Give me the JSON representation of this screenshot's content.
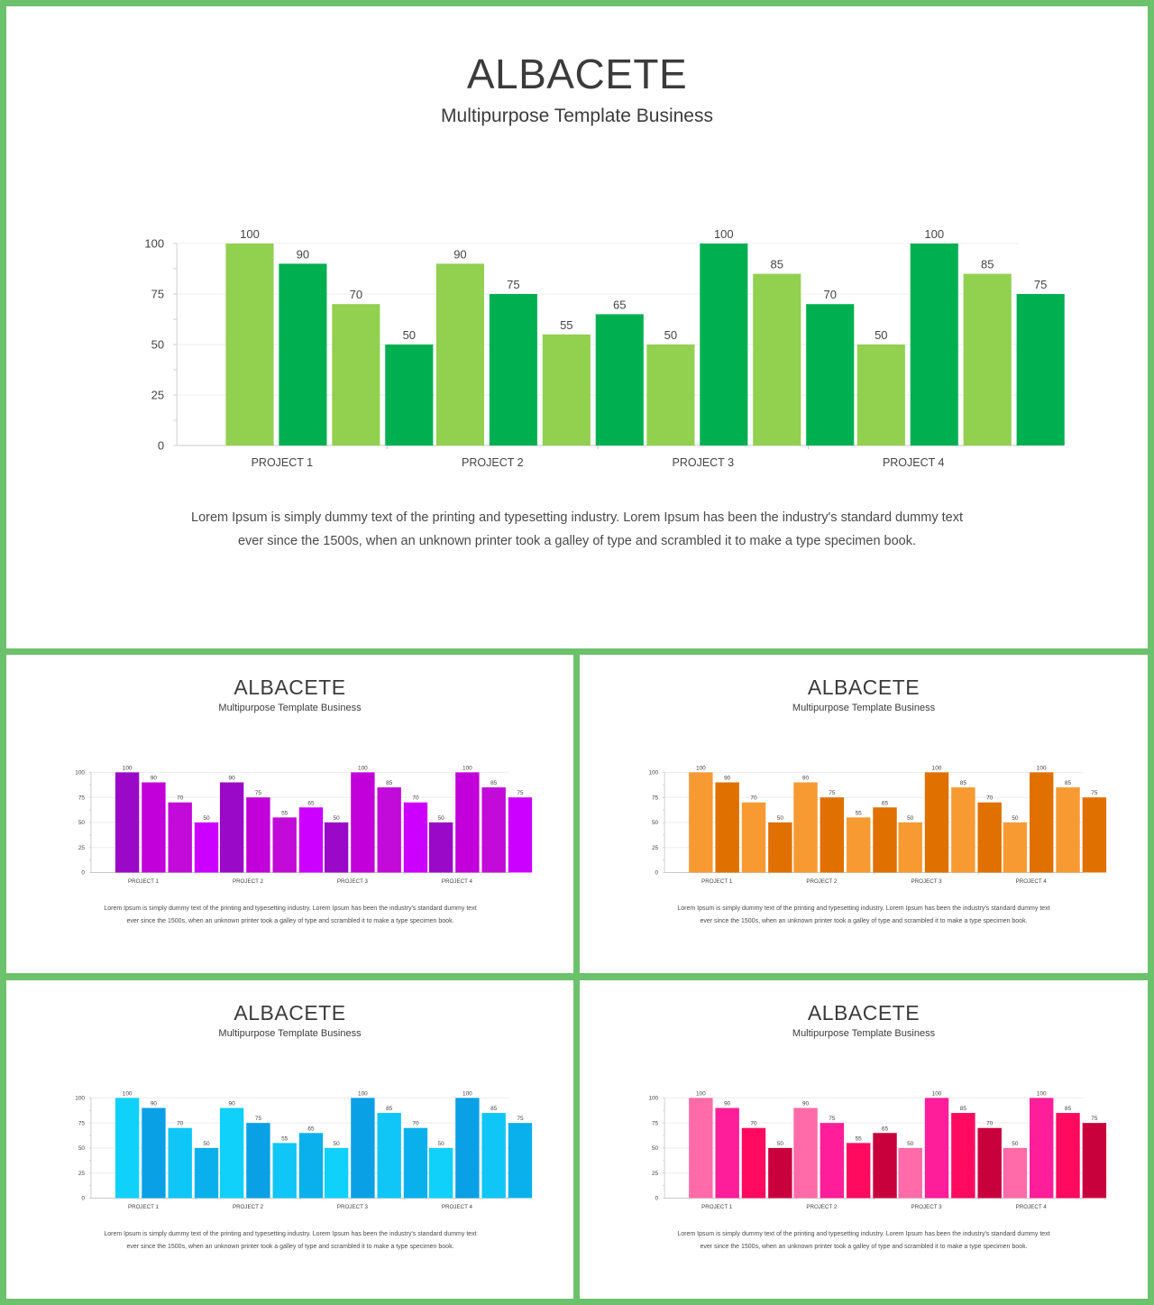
{
  "slides": [
    {
      "title": "ALBACETE",
      "subtitle": "Multipurpose Template Business",
      "body_line1": "Lorem Ipsum is simply dummy text of the printing and typesetting industry. Lorem Ipsum has been the industry's standard dummy text",
      "body_line2": "ever since the 1500s,  when an unknown printer took a galley of type and scrambled it to make a type specimen book.",
      "colors": [
        "#92d050",
        "#00b050",
        "#92d050",
        "#00b050"
      ]
    },
    {
      "title": "ALBACETE",
      "subtitle": "Multipurpose Template Business",
      "body_line1": "Lorem Ipsum is simply dummy text of the printing and typesetting industry. Lorem Ipsum has been the industry's standard dummy text",
      "body_line2": "ever since the 1500s,  when an unknown printer took a galley of type and scrambled it to make a type specimen book.",
      "colors": [
        "#9a09c7",
        "#c200d9",
        "#c20ad9",
        "#cc00ff"
      ]
    },
    {
      "title": "ALBACETE",
      "subtitle": "Multipurpose Template Business",
      "body_line1": "Lorem Ipsum is simply dummy text of the printing and typesetting industry. Lorem Ipsum has been the industry's standard dummy text",
      "body_line2": "ever since the 1500s,  when an unknown printer took a galley of type and scrambled it to make a type specimen book.",
      "colors": [
        "#f79a32",
        "#e07000",
        "#f79a32",
        "#e07000"
      ]
    },
    {
      "title": "ALBACETE",
      "subtitle": "Multipurpose Template Business",
      "body_line1": "Lorem Ipsum is simply dummy text of the printing and typesetting industry. Lorem Ipsum has been the industry's standard dummy text",
      "body_line2": "ever since the 1500s,  when an unknown printer took a galley of type and scrambled it to make a type specimen book.",
      "colors": [
        "#0fd1fa",
        "#0aa0e6",
        "#0fc6f7",
        "#0ab0eb"
      ]
    },
    {
      "title": "ALBACETE",
      "subtitle": "Multipurpose Template Business",
      "body_line1": "Lorem Ipsum is simply dummy text of the printing and typesetting industry. Lorem Ipsum has been the industry's standard dummy text",
      "body_line2": "ever since the 1500s,  when an unknown printer took a galley of type and scrambled it to make a type specimen book.",
      "colors": [
        "#ff6aa8",
        "#ff1e9a",
        "#ff0a5e",
        "#c8003c"
      ]
    }
  ],
  "chart_data": [
    {
      "type": "bar",
      "categories": [
        "PROJECT 1",
        "PROJECT 2",
        "PROJECT 3",
        "PROJECT 4"
      ],
      "series": [
        {
          "values": [
            100,
            90,
            50,
            50
          ]
        },
        {
          "values": [
            90,
            75,
            100,
            100
          ]
        },
        {
          "values": [
            70,
            55,
            85,
            85
          ]
        },
        {
          "values": [
            50,
            65,
            70,
            75
          ]
        }
      ],
      "yticks": [
        0,
        25,
        50,
        75,
        100
      ],
      "ylim": [
        0,
        100
      ],
      "grid": true,
      "data_labels": true
    },
    {
      "type": "bar",
      "categories": [
        "PROJECT 1",
        "PROJECT 2",
        "PROJECT 3",
        "PROJECT 4"
      ],
      "series": [
        {
          "values": [
            100,
            90,
            50,
            50
          ]
        },
        {
          "values": [
            90,
            75,
            100,
            100
          ]
        },
        {
          "values": [
            70,
            55,
            85,
            85
          ]
        },
        {
          "values": [
            50,
            65,
            70,
            75
          ]
        }
      ],
      "yticks": [
        0,
        25,
        50,
        75,
        100
      ],
      "ylim": [
        0,
        100
      ],
      "grid": true,
      "data_labels": true
    },
    {
      "type": "bar",
      "categories": [
        "PROJECT 1",
        "PROJECT 2",
        "PROJECT 3",
        "PROJECT 4"
      ],
      "series": [
        {
          "values": [
            100,
            90,
            50,
            50
          ]
        },
        {
          "values": [
            90,
            75,
            100,
            100
          ]
        },
        {
          "values": [
            70,
            55,
            85,
            85
          ]
        },
        {
          "values": [
            50,
            65,
            70,
            75
          ]
        }
      ],
      "yticks": [
        0,
        25,
        50,
        75,
        100
      ],
      "ylim": [
        0,
        100
      ],
      "grid": true,
      "data_labels": true
    },
    {
      "type": "bar",
      "categories": [
        "PROJECT 1",
        "PROJECT 2",
        "PROJECT 3",
        "PROJECT 4"
      ],
      "series": [
        {
          "values": [
            100,
            90,
            50,
            50
          ]
        },
        {
          "values": [
            90,
            75,
            100,
            100
          ]
        },
        {
          "values": [
            70,
            55,
            85,
            85
          ]
        },
        {
          "values": [
            50,
            65,
            70,
            75
          ]
        }
      ],
      "yticks": [
        0,
        25,
        50,
        75,
        100
      ],
      "ylim": [
        0,
        100
      ],
      "grid": true,
      "data_labels": true
    },
    {
      "type": "bar",
      "categories": [
        "PROJECT 1",
        "PROJECT 2",
        "PROJECT 3",
        "PROJECT 4"
      ],
      "series": [
        {
          "values": [
            100,
            90,
            50,
            50
          ]
        },
        {
          "values": [
            90,
            75,
            100,
            100
          ]
        },
        {
          "values": [
            70,
            55,
            85,
            85
          ]
        },
        {
          "values": [
            50,
            65,
            70,
            75
          ]
        }
      ],
      "yticks": [
        0,
        25,
        50,
        75,
        100
      ],
      "ylim": [
        0,
        100
      ],
      "grid": true,
      "data_labels": true
    }
  ]
}
